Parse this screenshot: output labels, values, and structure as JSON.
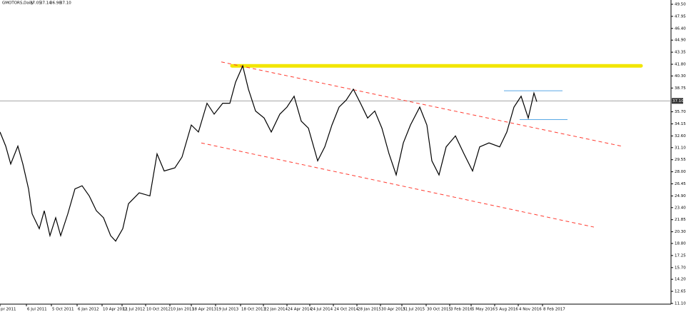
{
  "chart_data": {
    "type": "line",
    "title": "GMOTORS,Daily",
    "ohlc": [
      "37.05",
      "37.14",
      "36.98",
      "37.10"
    ],
    "last_price": {
      "value": 37.1,
      "label": "37.10"
    },
    "xlim": [
      0,
      1880
    ],
    "ylim": [
      11.1,
      49.5
    ],
    "xticks": [
      {
        "value": 0,
        "label": "pr 2011"
      },
      {
        "value": 74,
        "label": "6 Jul 2011"
      },
      {
        "value": 144,
        "label": "5 Oct 2011"
      },
      {
        "value": 216,
        "label": "6 Jan 2012"
      },
      {
        "value": 286,
        "label": "10 Apr 2012"
      },
      {
        "value": 342,
        "label": "11 Jul 2012"
      },
      {
        "value": 408,
        "label": "10 Oct 2012"
      },
      {
        "value": 476,
        "label": "10 Jan 2013"
      },
      {
        "value": 536,
        "label": "18 Apr 2013"
      },
      {
        "value": 604,
        "label": "19 Jul 2013"
      },
      {
        "value": 674,
        "label": "18 Oct 2013"
      },
      {
        "value": 738,
        "label": "22 Jan 2014"
      },
      {
        "value": 804,
        "label": "24 Apr 2014"
      },
      {
        "value": 868,
        "label": "24 Jul 2014"
      },
      {
        "value": 934,
        "label": "24 Oct 2014"
      },
      {
        "value": 1000,
        "label": "28 Jan 2015"
      },
      {
        "value": 1066,
        "label": "30 Apr 2015"
      },
      {
        "value": 1126,
        "label": "31 Jul 2015"
      },
      {
        "value": 1194,
        "label": "30 Oct 2015"
      },
      {
        "value": 1260,
        "label": "3 Feb 2016"
      },
      {
        "value": 1320,
        "label": "5 May 2016"
      },
      {
        "value": 1386,
        "label": "5 Aug 2016"
      },
      {
        "value": 1452,
        "label": "4 Nov 2016"
      },
      {
        "value": 1520,
        "label": "8 Feb 2017"
      }
    ],
    "yticks": [
      {
        "value": 49.5,
        "label": "49.50"
      },
      {
        "value": 47.95,
        "label": "47.95"
      },
      {
        "value": 46.4,
        "label": "46.40"
      },
      {
        "value": 44.9,
        "label": "44.90"
      },
      {
        "value": 43.35,
        "label": "43.35"
      },
      {
        "value": 41.8,
        "label": "41.80"
      },
      {
        "value": 40.3,
        "label": "40.30"
      },
      {
        "value": 38.75,
        "label": "38.75"
      },
      {
        "value": 35.7,
        "label": "35.70"
      },
      {
        "value": 34.15,
        "label": "34.15"
      },
      {
        "value": 32.6,
        "label": "32.60"
      },
      {
        "value": 31.1,
        "label": "31.10"
      },
      {
        "value": 29.55,
        "label": "29.55"
      },
      {
        "value": 28,
        "label": "28.00"
      },
      {
        "value": 26.45,
        "label": "26.45"
      },
      {
        "value": 24.9,
        "label": "24.90"
      },
      {
        "value": 23.4,
        "label": "23.40"
      },
      {
        "value": 21.85,
        "label": "21.85"
      },
      {
        "value": 20.3,
        "label": "20.30"
      },
      {
        "value": 18.8,
        "label": "18.80"
      },
      {
        "value": 17.25,
        "label": "17.25"
      },
      {
        "value": 15.7,
        "label": "15.70"
      },
      {
        "value": 14.2,
        "label": "14.20"
      },
      {
        "value": 12.65,
        "label": "12.65"
      },
      {
        "value": 11.1,
        "label": "11.10"
      }
    ],
    "series": [
      {
        "color": "#000000",
        "x": [
          0,
          16,
          30,
          50,
          64,
          80,
          90,
          110,
          124,
          140,
          156,
          170,
          190,
          210,
          230,
          250,
          270,
          290,
          310,
          324,
          344,
          360,
          390,
          420,
          440,
          460,
          490,
          510,
          536,
          556,
          580,
          600,
          624,
          644,
          660,
          680,
          696,
          716,
          740,
          760,
          784,
          804,
          824,
          844,
          864,
          890,
          910,
          930,
          950,
          970,
          990,
          1010,
          1030,
          1050,
          1070,
          1090,
          1110,
          1130,
          1150,
          1176,
          1196,
          1210,
          1230,
          1250,
          1276,
          1300,
          1324,
          1344,
          1370,
          1400,
          1420,
          1440,
          1460,
          1480,
          1496,
          1504
        ],
        "values": [
          33.1,
          31.3,
          29.0,
          31.3,
          29.0,
          25.8,
          22.6,
          20.7,
          23.0,
          19.8,
          22.1,
          19.8,
          22.6,
          25.8,
          26.2,
          24.9,
          23.0,
          22.1,
          19.8,
          19.1,
          20.7,
          23.9,
          25.3,
          24.9,
          30.3,
          28.1,
          28.5,
          29.9,
          34.0,
          33.1,
          36.8,
          35.4,
          36.8,
          36.8,
          39.5,
          41.6,
          38.6,
          35.8,
          34.9,
          33.1,
          35.4,
          36.3,
          37.7,
          34.5,
          33.6,
          29.4,
          31.2,
          34.0,
          36.3,
          37.2,
          38.6,
          36.8,
          34.9,
          35.8,
          33.6,
          30.3,
          27.6,
          31.7,
          34.0,
          36.3,
          34.0,
          29.4,
          27.6,
          31.2,
          32.6,
          30.3,
          28.1,
          31.2,
          31.7,
          31.2,
          33.1,
          36.3,
          37.7,
          34.9,
          38.1,
          37.0
        ]
      }
    ],
    "levels": [
      {
        "color": "#f2e600",
        "x": [
          650,
          1796
        ],
        "y": [
          41.6,
          41.6
        ]
      },
      {
        "color": "#ff3b30",
        "x": [
          620,
          1740
        ],
        "y": [
          42.1,
          31.3
        ]
      },
      {
        "color": "#ff3b30",
        "x": [
          564,
          1664
        ],
        "y": [
          31.7,
          20.9
        ]
      },
      {
        "color": "#5aa9e6",
        "x": [
          1412,
          1576
        ],
        "y": [
          38.4,
          38.4
        ]
      },
      {
        "color": "#5aa9e6",
        "x": [
          1456,
          1590
        ],
        "y": [
          34.7,
          34.7
        ]
      }
    ]
  }
}
